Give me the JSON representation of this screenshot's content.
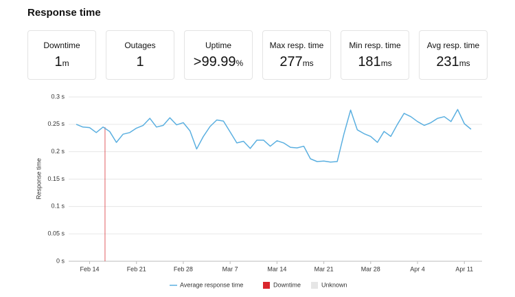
{
  "header": {
    "title": "Response time"
  },
  "stats": [
    {
      "label": "Downtime",
      "value": 1,
      "unit": "m"
    },
    {
      "label": "Outages",
      "value": 1
    },
    {
      "label": "Uptime",
      "value": ">99.99",
      "unit": "%"
    },
    {
      "label": "Max resp. time",
      "value": 277,
      "unit": "ms"
    },
    {
      "label": "Min resp. time",
      "value": 181,
      "unit": "ms"
    },
    {
      "label": "Avg resp. time",
      "value": 231,
      "unit": "ms"
    }
  ],
  "chart_data": {
    "type": "line",
    "y_label": "Response time",
    "categories": [
      null,
      null,
      "Feb 14",
      null,
      null,
      null,
      null,
      null,
      null,
      "Feb 21",
      null,
      null,
      null,
      null,
      null,
      null,
      "Feb 28",
      null,
      null,
      null,
      null,
      null,
      null,
      "Mar 7",
      null,
      null,
      null,
      null,
      null,
      null,
      "Mar 14",
      null,
      null,
      null,
      null,
      null,
      null,
      "Mar 21",
      null,
      null,
      null,
      null,
      null,
      null,
      "Mar 28",
      null,
      null,
      null,
      null,
      null,
      null,
      "Apr 4",
      null,
      null,
      null,
      null,
      null,
      null,
      "Apr 11",
      null
    ],
    "series": [
      {
        "name": "Average response time",
        "color": "#5aafe0",
        "values": [
          0.25,
          0.245,
          0.244,
          0.235,
          0.245,
          0.237,
          0.217,
          0.232,
          0.235,
          0.243,
          0.248,
          0.261,
          0.245,
          0.248,
          0.262,
          0.249,
          0.253,
          0.238,
          0.205,
          0.228,
          0.246,
          0.258,
          0.256,
          0.236,
          0.216,
          0.219,
          0.206,
          0.221,
          0.221,
          0.21,
          0.22,
          0.216,
          0.208,
          0.207,
          0.21,
          0.187,
          0.182,
          0.183,
          0.181,
          0.182,
          0.232,
          0.276,
          0.24,
          0.233,
          0.228,
          0.217,
          0.237,
          0.228,
          0.25,
          0.27,
          0.264,
          0.255,
          0.248,
          0.253,
          0.261,
          0.264,
          0.255,
          0.277,
          0.251,
          0.241
        ]
      }
    ],
    "downtime": {
      "name": "Downtime",
      "color": "#d9262c",
      "x": 4.3
    },
    "unknown": {
      "name": "Unknown",
      "color": "#e6e6e6"
    },
    "ylim": [
      0,
      0.3
    ],
    "yticks": [
      {
        "value": 0,
        "label": "0 s"
      },
      {
        "value": 0.05,
        "label": "0.05 s"
      },
      {
        "value": 0.1,
        "label": "0.1 s"
      },
      {
        "value": 0.15,
        "label": "0.15 s"
      },
      {
        "value": 0.2,
        "label": "0.2 s"
      },
      {
        "value": 0.25,
        "label": "0.25 s"
      },
      {
        "value": 0.3,
        "label": "0.3 s"
      }
    ],
    "grid": true
  }
}
